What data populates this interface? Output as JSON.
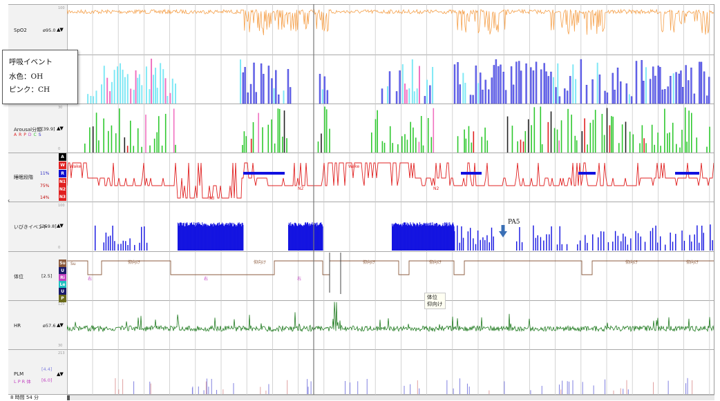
{
  "tracks": {
    "spo2": {
      "name": "SpO2",
      "value": "ø95.0",
      "arrows": "▲▼",
      "scale_top": "100"
    },
    "arousal": {
      "name": "Arousal分類",
      "value": "[39.9]",
      "arrows": "▲▼",
      "scale_top": "30",
      "scale_bottom": "0",
      "legend": [
        "A",
        "R",
        "P",
        "D",
        "C",
        "S"
      ]
    },
    "stage": {
      "name": "睡眠段階",
      "labels": [
        "A",
        "W",
        "R",
        "N1",
        "N2",
        "N3"
      ],
      "pcts": [
        "11%",
        "75%",
        "14%"
      ],
      "text_wake1": "Wake",
      "text_wake2": "Wake",
      "text_n3": "N3",
      "text_n2a": "N2",
      "text_n2b": "N2"
    },
    "snore": {
      "name": "いびきイベント",
      "value": "[259.8]",
      "arrows": "▲▼",
      "scale_top": "100",
      "scale_bottom": "0"
    },
    "position": {
      "name": "体位",
      "value": "[2.5]",
      "labels": [
        "Su",
        "U",
        "Ri",
        "Le",
        "U",
        "P"
      ],
      "su_marker": "Su",
      "seg_labels": [
        "右",
        "仰向け",
        "右",
        "仰向け",
        "右",
        "仰向け",
        "仰向け",
        "仰向け",
        "仰向け"
      ]
    },
    "hr": {
      "name": "HR",
      "value": "ø57.6",
      "arrows": "▲▼",
      "scale_top": "120",
      "scale_bottom": "30"
    },
    "plm": {
      "name": "PLM",
      "value1": "[4.4]",
      "value2": "[6.0]",
      "arrows": "▲▼",
      "sub": "L P R 体",
      "scale_top": "213"
    }
  },
  "legend_box": {
    "title": "呼吸イベント",
    "line1": "水色：OH",
    "line2": "ピンク：CH"
  },
  "tooltip": {
    "line1": "体位",
    "line2": "仰向け"
  },
  "annotation": {
    "label": "PA5"
  },
  "footer": {
    "time": "8 時間 54 分"
  },
  "colors": {
    "spo2": "#f5a04a",
    "oh": "#7fe8f5",
    "ch": "#f070c0",
    "respiratory": "#3030c8",
    "arousal_green": "#2ec82e",
    "stage_red": "#e02020",
    "snore_blue": "#1010e0",
    "position_magenta": "#c040c0",
    "position_brown": "#8b5a3c",
    "hr_green": "#1f7a1f",
    "plm_purple": "#8080e0"
  }
}
